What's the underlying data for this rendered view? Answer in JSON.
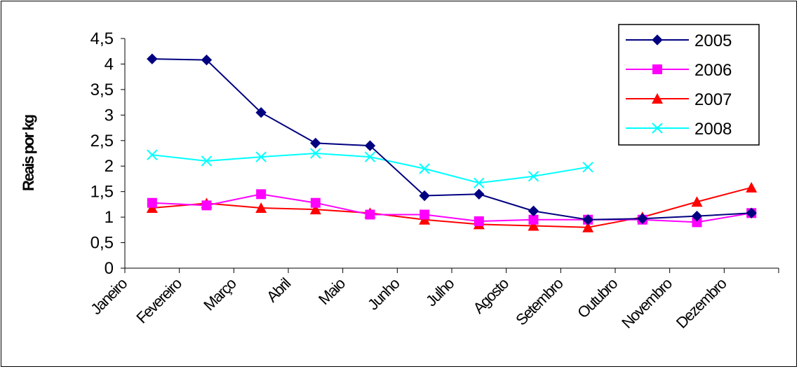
{
  "chart_data": {
    "type": "line",
    "title": "",
    "xlabel": "",
    "ylabel": "Reais por kg",
    "ylim": [
      0,
      4.5
    ],
    "yticks": [
      0,
      0.5,
      1,
      1.5,
      2,
      2.5,
      3,
      3.5,
      4,
      4.5
    ],
    "ytick_labels": [
      "0",
      "0,5",
      "1",
      "1,5",
      "2",
      "2,5",
      "3",
      "3,5",
      "4",
      "4,5"
    ],
    "categories": [
      "Janeiro",
      "Fevereiro",
      "Março",
      "Abril",
      "Maio",
      "Junho",
      "Julho",
      "Agosto",
      "Setembro",
      "Outubro",
      "Novembro",
      "Dezembro"
    ],
    "legend_position": "top-right",
    "grid": false,
    "series": [
      {
        "name": "2005",
        "color": "#000080",
        "marker": "diamond",
        "values": [
          4.1,
          4.08,
          3.05,
          2.45,
          2.4,
          1.42,
          1.45,
          1.12,
          0.95,
          0.97,
          1.02,
          1.08
        ]
      },
      {
        "name": "2006",
        "color": "#FF00FF",
        "marker": "square",
        "values": [
          1.28,
          1.23,
          1.45,
          1.28,
          1.05,
          1.05,
          0.92,
          0.95,
          0.95,
          0.95,
          0.9,
          1.08
        ]
      },
      {
        "name": "2007",
        "color": "#FF0000",
        "marker": "triangle",
        "values": [
          1.18,
          1.27,
          1.18,
          1.15,
          1.08,
          0.95,
          0.86,
          0.83,
          0.8,
          1.0,
          1.3,
          1.58
        ]
      },
      {
        "name": "2008",
        "color": "#00FFFF",
        "marker": "x",
        "values": [
          2.22,
          2.1,
          2.18,
          2.25,
          2.18,
          1.95,
          1.67,
          1.8,
          1.98,
          null,
          null,
          null
        ]
      }
    ]
  }
}
